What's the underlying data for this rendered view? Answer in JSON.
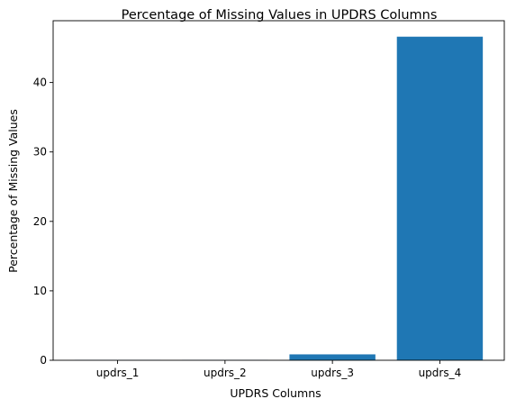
{
  "chart_data": {
    "type": "bar",
    "title": "Percentage of Missing Values in UPDRS Columns",
    "xlabel": "UPDRS Columns",
    "ylabel": "Percentage of Missing Values",
    "categories": [
      "updrs_1",
      "updrs_2",
      "updrs_3",
      "updrs_4"
    ],
    "values": [
      0.04,
      0.04,
      0.85,
      46.6
    ],
    "yticks": [
      0,
      10,
      20,
      30,
      40
    ],
    "ylim": [
      0,
      48.9
    ],
    "grid": false,
    "bar_color": "#1f77b4"
  }
}
